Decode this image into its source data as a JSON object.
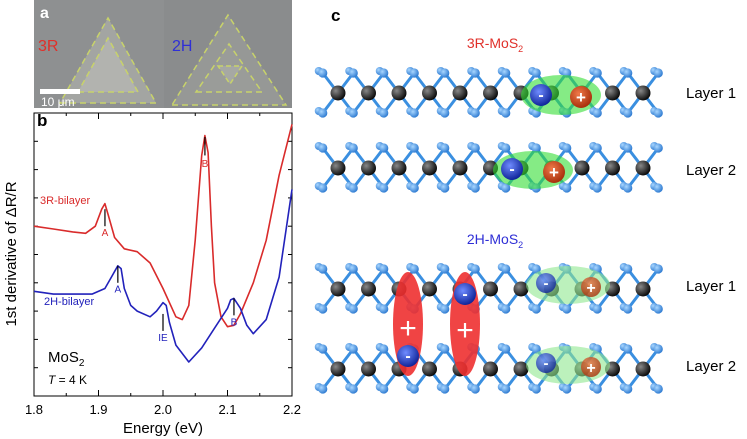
{
  "panel_a": {
    "label": "a",
    "flake_left_label": "3R",
    "flake_right_label": "2H",
    "scale_bar": "10 μm",
    "colors": {
      "left_label": "#e0302a",
      "right_label": "#2f2fd6",
      "outline": "#c8d36a"
    }
  },
  "panel_b": {
    "label": "b",
    "material": "MoS",
    "material_sub": "2",
    "temperature_var": "T",
    "temperature_rest": " = 4 K"
  },
  "panel_c": {
    "label": "c",
    "top_title": "3R-MoS",
    "top_title_sub": "2",
    "bottom_title": "2H-MoS",
    "bottom_title_sub": "2",
    "layer_labels": [
      "Layer 1",
      "Layer 2",
      "Layer 1",
      "Layer 2"
    ],
    "minus": "-",
    "plus": "+",
    "colors": {
      "top_title": "#e0302a",
      "bottom_title": "#2f2fd6",
      "exciton": "#33dd33",
      "electron": "#1a3cc8",
      "hole": "#c8401a",
      "interlayer": "#ee3030",
      "sulfur": "#3a8fe0",
      "molybdenum": "#111111"
    }
  },
  "chart_data": {
    "type": "line",
    "xlabel": "Energy (eV)",
    "ylabel": "1st derivative of ΔR/R",
    "xlim": [
      1.8,
      2.2
    ],
    "xticks": [
      "1.8",
      "1.9",
      "2.0",
      "2.1",
      "2.2"
    ],
    "series": [
      {
        "name": "3R-bilayer",
        "color": "#d92b2b",
        "x": [
          1.8,
          1.83,
          1.86,
          1.88,
          1.895,
          1.905,
          1.91,
          1.915,
          1.925,
          1.94,
          1.96,
          1.98,
          2.0,
          2.02,
          2.03,
          2.04,
          2.05,
          2.06,
          2.065,
          2.07,
          2.075,
          2.08,
          2.09,
          2.1,
          2.11,
          2.12,
          2.14,
          2.16,
          2.18,
          2.2
        ],
        "y": [
          0.6,
          0.59,
          0.58,
          0.575,
          0.6,
          0.66,
          0.68,
          0.64,
          0.56,
          0.52,
          0.51,
          0.47,
          0.38,
          0.28,
          0.27,
          0.32,
          0.55,
          0.85,
          0.92,
          0.86,
          0.6,
          0.4,
          0.28,
          0.245,
          0.25,
          0.29,
          0.4,
          0.55,
          0.78,
          0.96
        ]
      },
      {
        "name": "2H-bilayer",
        "color": "#2222bb",
        "x": [
          1.8,
          1.83,
          1.86,
          1.89,
          1.91,
          1.92,
          1.93,
          1.935,
          1.94,
          1.95,
          1.96,
          1.98,
          1.99,
          2.0,
          2.005,
          2.01,
          2.02,
          2.04,
          2.06,
          2.08,
          2.1,
          2.105,
          2.11,
          2.12,
          2.13,
          2.14,
          2.16,
          2.18,
          2.2
        ],
        "y": [
          0.37,
          0.36,
          0.36,
          0.36,
          0.38,
          0.42,
          0.46,
          0.45,
          0.38,
          0.32,
          0.3,
          0.28,
          0.3,
          0.33,
          0.32,
          0.26,
          0.18,
          0.12,
          0.17,
          0.24,
          0.31,
          0.34,
          0.345,
          0.31,
          0.25,
          0.22,
          0.27,
          0.42,
          0.73
        ]
      }
    ],
    "annotations": [
      {
        "text": "A",
        "series": 0,
        "x": 1.91,
        "tick_y": [
          0.66,
          0.6
        ],
        "label_y": 0.565
      },
      {
        "text": "B",
        "series": 0,
        "x": 2.065,
        "tick_y": [
          0.915,
          0.85
        ],
        "label_y": 0.81
      },
      {
        "text": "A",
        "series": 1,
        "x": 1.93,
        "tick_y": [
          0.46,
          0.4
        ],
        "label_y": 0.365
      },
      {
        "text": "IE",
        "series": 1,
        "x": 2.0,
        "tick_y": [
          0.29,
          0.23
        ],
        "label_y": 0.195
      },
      {
        "text": "B",
        "series": 1,
        "x": 2.11,
        "tick_y": [
          0.345,
          0.285
        ],
        "label_y": 0.25
      }
    ]
  }
}
